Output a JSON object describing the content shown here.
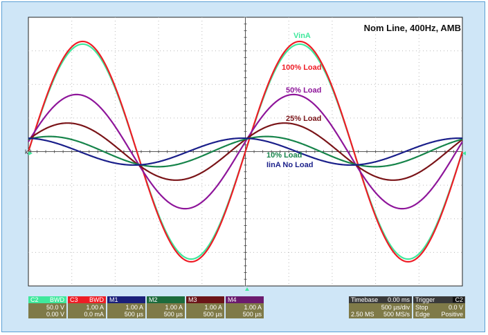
{
  "chart_data": {
    "type": "line",
    "title": "Nom Line, 400Hz, AMB",
    "x_unit": "µs",
    "y_unit": "divisions",
    "xlim": [
      0,
      5000
    ],
    "ylim": [
      -4,
      4
    ],
    "grid": true,
    "series": [
      {
        "name": "VinA",
        "color": "#3fe89c",
        "amplitude": 3.2,
        "phase_deg": 0
      },
      {
        "name": "100% Load",
        "color": "#ee1c25",
        "amplitude": 3.28,
        "phase_deg": 0
      },
      {
        "name": "50% Load",
        "color": "#8e159a",
        "amplitude": 1.7,
        "phase_deg": 10
      },
      {
        "name": "25% Load",
        "color": "#7a1418",
        "amplitude": 0.85,
        "phase_deg": 25
      },
      {
        "name": "10% Load",
        "color": "#16844a",
        "amplitude": 0.45,
        "phase_deg": 55
      },
      {
        "name": "IinA No Load",
        "color": "#1a1f8a",
        "amplitude": 0.4,
        "phase_deg": 95
      }
    ],
    "ground_marker": "k8"
  },
  "readouts": {
    "channels": [
      {
        "id": "C2",
        "flags": "BWD",
        "line1": "50.0 V",
        "line2": "0.00 V",
        "head_bg": "#3fe89c",
        "body_bg": "#7f7a48",
        "head_fg": "#ffffff"
      },
      {
        "id": "C3",
        "flags": "BWD",
        "line1": "1.00 A",
        "line2": "0.0 mA",
        "head_bg": "#ee1c25",
        "body_bg": "#7f7a48",
        "head_fg": "#ffffff"
      },
      {
        "id": "M1",
        "flags": "",
        "line1": "1.00 A",
        "line2": "500 µs",
        "head_bg": "#1a1f7a",
        "body_bg": "#7f7a48",
        "head_fg": "#ffffff"
      },
      {
        "id": "M2",
        "flags": "",
        "line1": "1.00 A",
        "line2": "500 µs",
        "head_bg": "#1c6b3c",
        "body_bg": "#7f7a48",
        "head_fg": "#ffffff"
      },
      {
        "id": "M3",
        "flags": "",
        "line1": "1.00 A",
        "line2": "500 µs",
        "head_bg": "#6b1418",
        "body_bg": "#7f7a48",
        "head_fg": "#ffffff"
      },
      {
        "id": "M4",
        "flags": "",
        "line1": "1.00 A",
        "line2": "500 µs",
        "head_bg": "#6b1a6e",
        "body_bg": "#7f7a48",
        "head_fg": "#ffffff"
      }
    ],
    "timebase": {
      "label": "Timebase",
      "delay": "0.00 ms",
      "per_div": "500 µs/div",
      "samples": "2.50 MS",
      "rate": "500 MS/s"
    },
    "trigger": {
      "label": "Trigger",
      "channel": "C2",
      "mode": "Stop",
      "level": "0.0 V",
      "type": "Edge",
      "slope": "Positive"
    }
  }
}
